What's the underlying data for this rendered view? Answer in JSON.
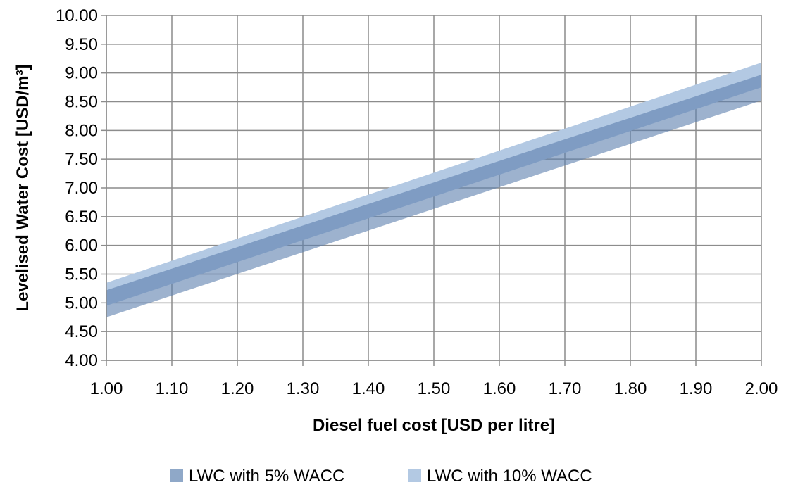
{
  "chart_data": {
    "type": "area",
    "xlabel": "Diesel fuel cost [USD per litre]",
    "ylabel": "Levelised Water Cost [USD/m³]",
    "x": [
      1.0,
      2.0
    ],
    "xlim": [
      1.0,
      2.0
    ],
    "ylim": [
      4.0,
      10.0
    ],
    "x_ticks": [
      1.0,
      1.1,
      1.2,
      1.3,
      1.4,
      1.5,
      1.6,
      1.7,
      1.8,
      1.9,
      2.0
    ],
    "y_ticks": [
      4.0,
      4.5,
      5.0,
      5.5,
      6.0,
      6.5,
      7.0,
      7.5,
      8.0,
      8.5,
      9.0,
      9.5,
      10.0
    ],
    "x_tick_labels": [
      "1.00",
      "1.10",
      "1.20",
      "1.30",
      "1.40",
      "1.50",
      "1.60",
      "1.70",
      "1.80",
      "1.90",
      "2.00"
    ],
    "y_tick_labels": [
      "4.00",
      "4.50",
      "5.00",
      "5.50",
      "6.00",
      "6.50",
      "7.00",
      "7.50",
      "8.00",
      "8.50",
      "9.00",
      "9.50",
      "10.00"
    ],
    "grid": true,
    "legend_position": "bottom",
    "series": [
      {
        "name": "LWC with 10% WACC",
        "color": "#b3c9e3",
        "opacity": 1.0,
        "lower": [
          4.95,
          8.75
        ],
        "upper": [
          5.35,
          9.18
        ]
      },
      {
        "name": "LWC with 5% WACC",
        "color": "#5b7fad",
        "opacity": 0.6,
        "lower": [
          4.75,
          8.52
        ],
        "upper": [
          5.22,
          8.97
        ]
      }
    ]
  }
}
